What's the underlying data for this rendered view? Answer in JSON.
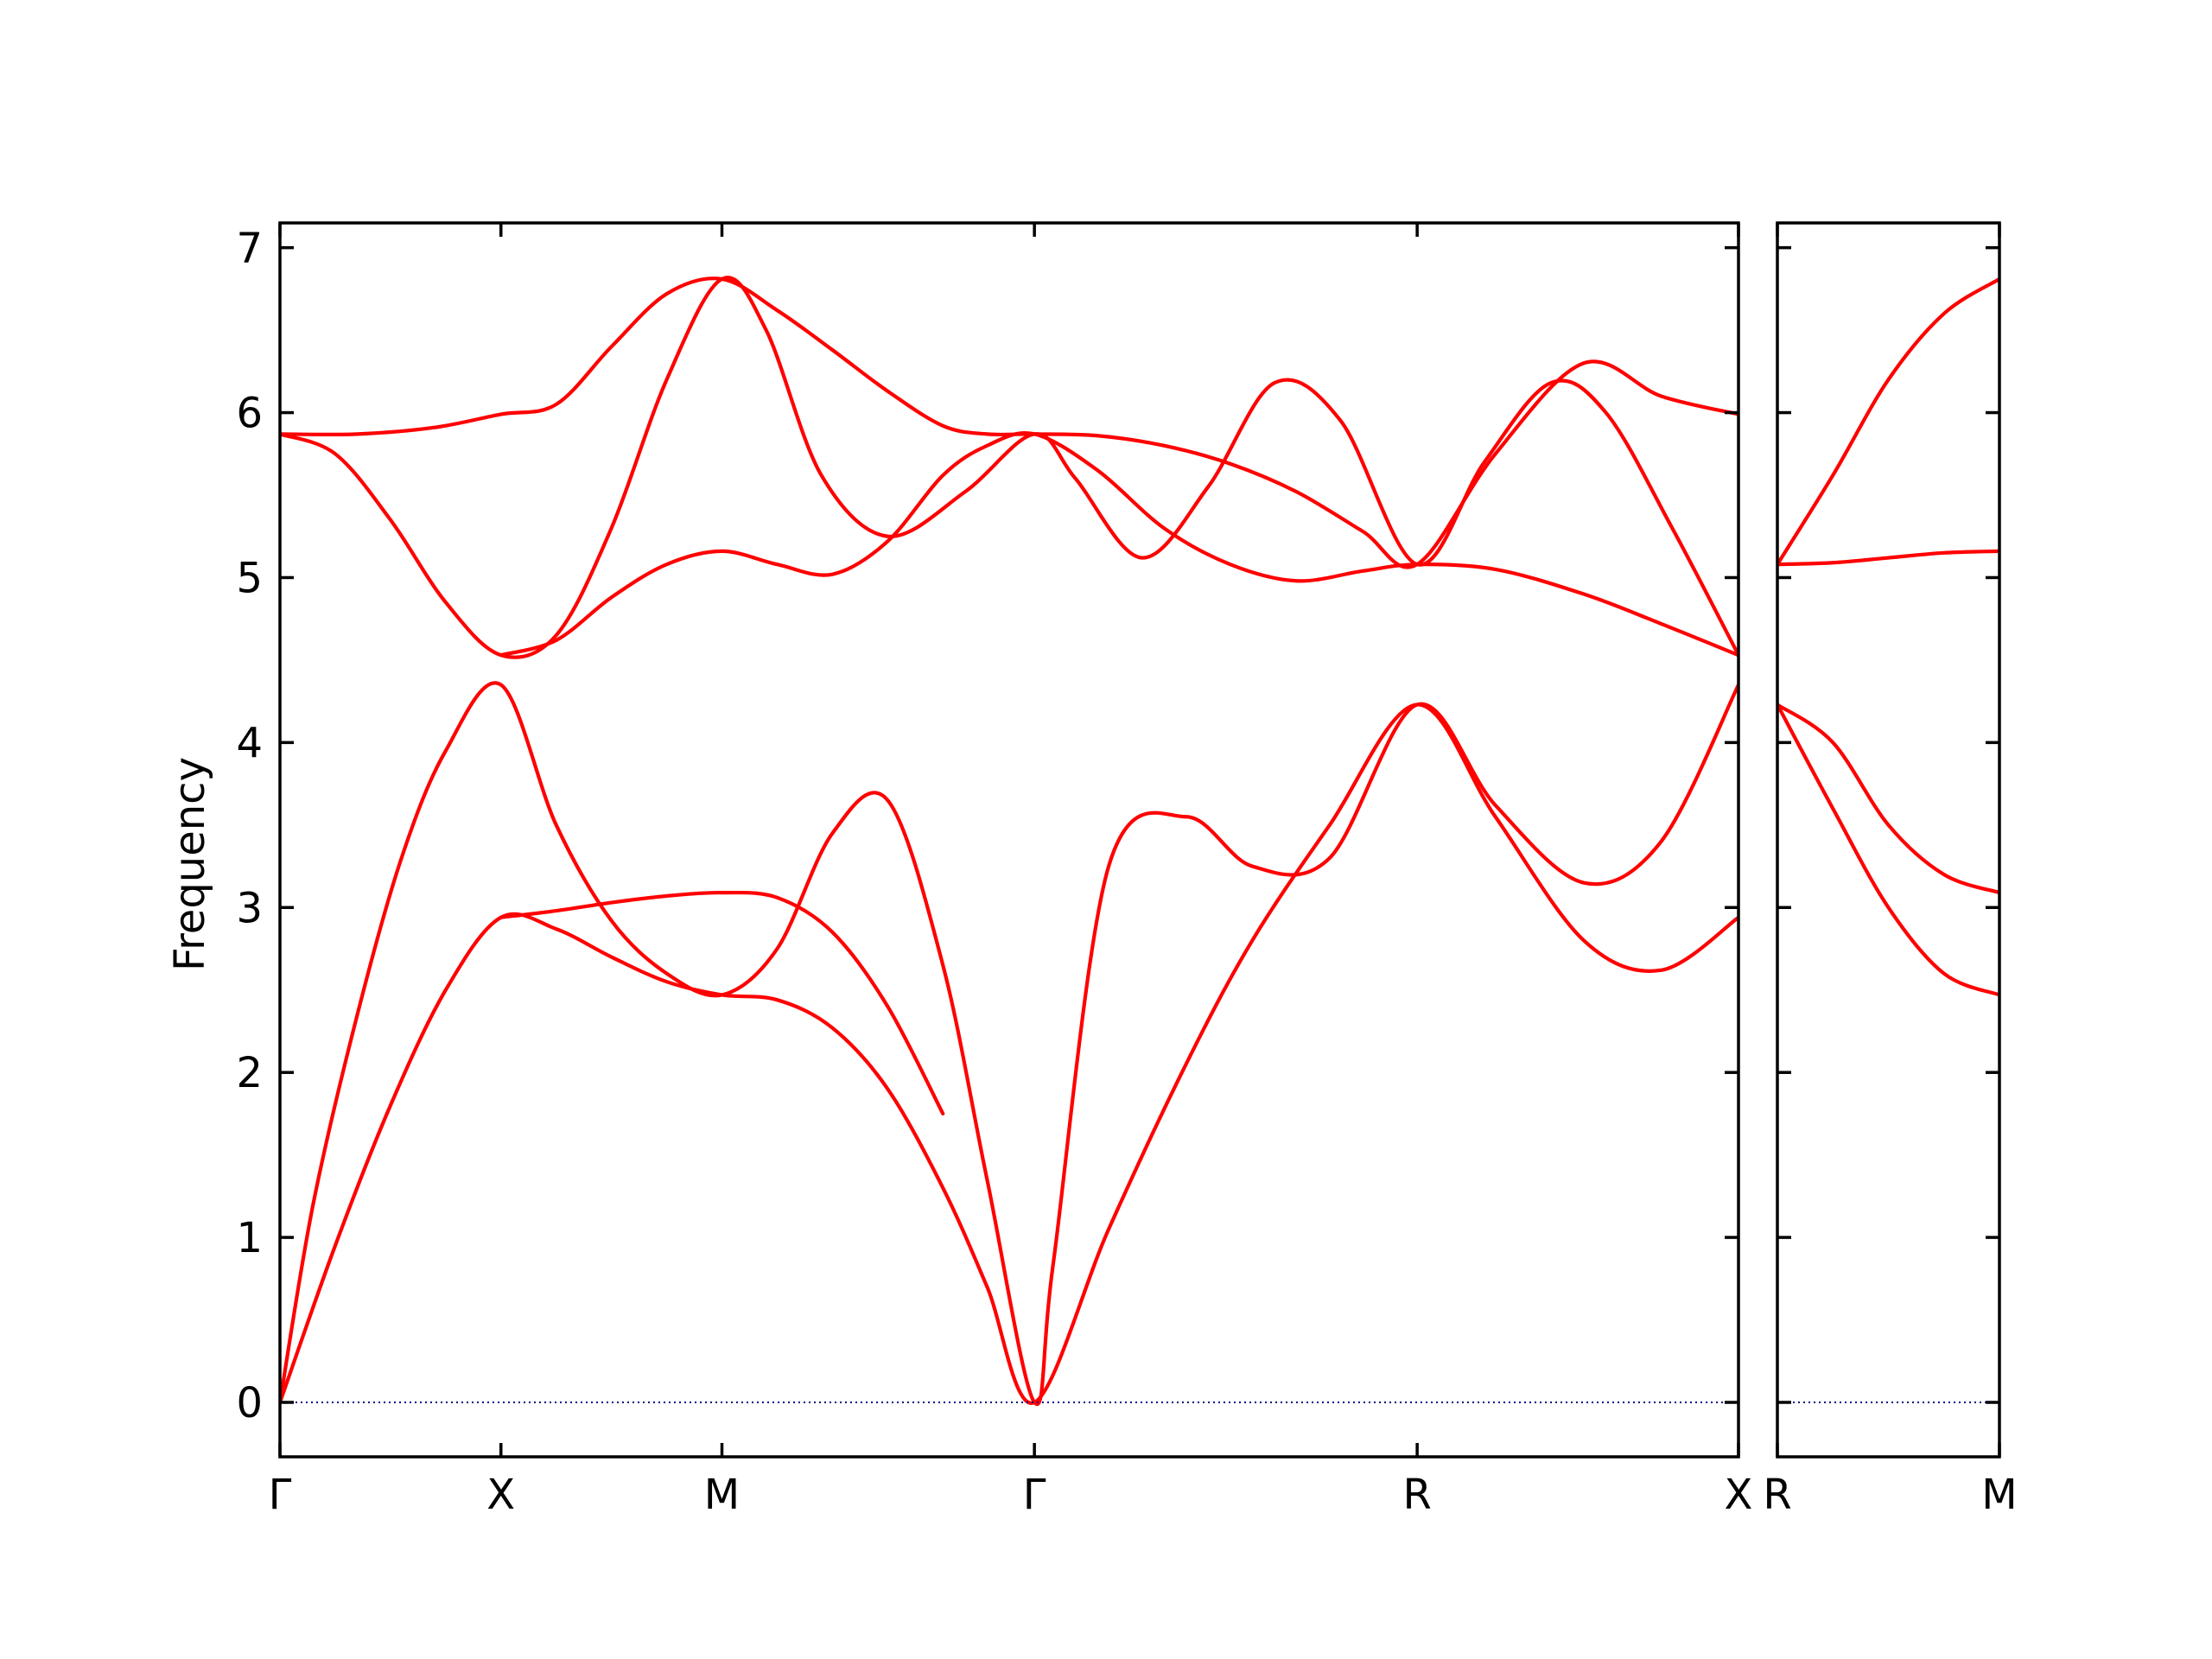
{
  "chart_data": {
    "type": "line",
    "title": "",
    "xlabel": "",
    "ylabel": "Frequency",
    "ylim": [
      -0.33,
      7.15
    ],
    "yticks": [
      0,
      1,
      2,
      3,
      4,
      5,
      6,
      7
    ],
    "line_color": "#ff0000",
    "zero_line_color": "#00008b",
    "grid": false,
    "legend": "none",
    "panels": [
      {
        "name": "Γ-X-M-Γ-R-X",
        "xlim": [
          0,
          6.6
        ],
        "ticks": [
          {
            "label": "Γ",
            "x": 0
          },
          {
            "label": "X",
            "x": 1
          },
          {
            "label": "M",
            "x": 2
          },
          {
            "label": "Γ",
            "x": 3.414
          },
          {
            "label": "R",
            "x": 5.146
          },
          {
            "label": "X",
            "x": 6.6
          }
        ],
        "series": [
          {
            "x": [
              0,
              0.25,
              0.5,
              0.75,
              1,
              1.25,
              1.5,
              1.75,
              2,
              2.25,
              2.5,
              2.75,
              3,
              3.2,
              3.414,
              3.75,
              4.1,
              4.4,
              4.75,
              5.146,
              5.5,
              5.9,
              6.25,
              6.6
            ],
            "y": [
              0,
              0.95,
              1.8,
              2.5,
              2.94,
              2.87,
              2.7,
              2.55,
              2.47,
              2.44,
              2.27,
              1.9,
              1.3,
              0.7,
              0,
              1.05,
              2.05,
              2.8,
              3.5,
              4.23,
              3.55,
              2.8,
              2.62,
              2.94
            ]
          },
          {
            "x": [
              0,
              0.15,
              0.35,
              0.55,
              0.75,
              1,
              1.25,
              1.5,
              1.75,
              2,
              2.25,
              2.5,
              2.75,
              3,
              3.2,
              3.414,
              3.5,
              3.75,
              4.1,
              4.4,
              4.75,
              5.146,
              5.5,
              5.9,
              6.25,
              6.6
            ],
            "y": [
              0,
              1.2,
              2.35,
              3.3,
              3.95,
              4.35,
              3.5,
              2.92,
              2.6,
              2.47,
              2.75,
              3.45,
              3.65,
              2.65,
              1.35,
              0,
              0.85,
              3.25,
              3.55,
              3.25,
              3.3,
              4.23,
              3.62,
              3.15,
              3.4,
              4.35
            ]
          },
          {
            "x": [
              1,
              1.25,
              1.5,
              1.75,
              2,
              2.25,
              2.5,
              2.75,
              3
            ],
            "y": [
              2.94,
              2.98,
              3.03,
              3.07,
              3.09,
              3.06,
              2.85,
              2.4,
              1.75
            ]
          },
          {
            "x": [
              0,
              0.35,
              0.7,
              1,
              1.25,
              1.5,
              1.75,
              2,
              2.25,
              2.5,
              2.75,
              3,
              3.2,
              3.414,
              3.7,
              4,
              4.3,
              4.6,
              4.9,
              5.146,
              5.5,
              5.9,
              6.25,
              6.6
            ],
            "y": [
              5.87,
              5.87,
              5.91,
              5.99,
              6.05,
              6.4,
              6.72,
              6.81,
              6.62,
              6.38,
              6.13,
              5.92,
              5.87,
              5.87,
              5.86,
              5.8,
              5.69,
              5.52,
              5.28,
              5.08,
              5.75,
              6.3,
              6.1,
              5.99
            ]
          },
          {
            "x": [
              0,
              0.25,
              0.5,
              0.75,
              1,
              1.25,
              1.5,
              1.75,
              2,
              2.2,
              2.45,
              2.75,
              3.1,
              3.414,
              3.6,
              3.9,
              4.2,
              4.5,
              4.8,
              5.146,
              5.45,
              5.75,
              6,
              6.3,
              6.6
            ],
            "y": [
              5.87,
              5.75,
              5.35,
              4.85,
              4.53,
              4.65,
              5.3,
              6.2,
              6.81,
              6.5,
              5.62,
              5.25,
              5.52,
              5.87,
              5.6,
              5.12,
              5.55,
              6.18,
              5.95,
              5.08,
              5.7,
              6.18,
              6.0,
              5.3,
              4.53
            ]
          },
          {
            "x": [
              1,
              1.25,
              1.5,
              1.75,
              2,
              2.25,
              2.5,
              2.75,
              3,
              3.2,
              3.414,
              3.7,
              4,
              4.3,
              4.6,
              4.9,
              5.146,
              5.5,
              5.9,
              6.25,
              6.6
            ],
            "y": [
              4.53,
              4.62,
              4.88,
              5.08,
              5.16,
              5.08,
              5.02,
              5.22,
              5.62,
              5.8,
              5.87,
              5.65,
              5.3,
              5.08,
              4.98,
              5.04,
              5.08,
              5.05,
              4.9,
              4.72,
              4.53
            ]
          },
          {
            "x": [
              0,
              6.6
            ],
            "y": [
              0,
              0
            ],
            "role": "zero"
          }
        ]
      },
      {
        "name": "R-M",
        "xlim": [
          0,
          1
        ],
        "ticks": [
          {
            "label": "R",
            "x": 0
          },
          {
            "label": "M",
            "x": 1
          }
        ],
        "series": [
          {
            "x": [
              0,
              0.25,
              0.5,
              0.75,
              1
            ],
            "y": [
              4.23,
              3.6,
              3.0,
              2.6,
              2.47
            ]
          },
          {
            "x": [
              0,
              0.25,
              0.5,
              0.75,
              1
            ],
            "y": [
              4.23,
              4.0,
              3.5,
              3.2,
              3.09
            ]
          },
          {
            "x": [
              0,
              0.25,
              0.5,
              0.75,
              1
            ],
            "y": [
              5.08,
              5.09,
              5.12,
              5.15,
              5.16
            ]
          },
          {
            "x": [
              0,
              0.25,
              0.5,
              0.75,
              1
            ],
            "y": [
              5.08,
              5.62,
              6.2,
              6.6,
              6.81
            ]
          },
          {
            "x": [
              0,
              1
            ],
            "y": [
              0,
              0
            ],
            "role": "zero"
          }
        ]
      }
    ]
  }
}
